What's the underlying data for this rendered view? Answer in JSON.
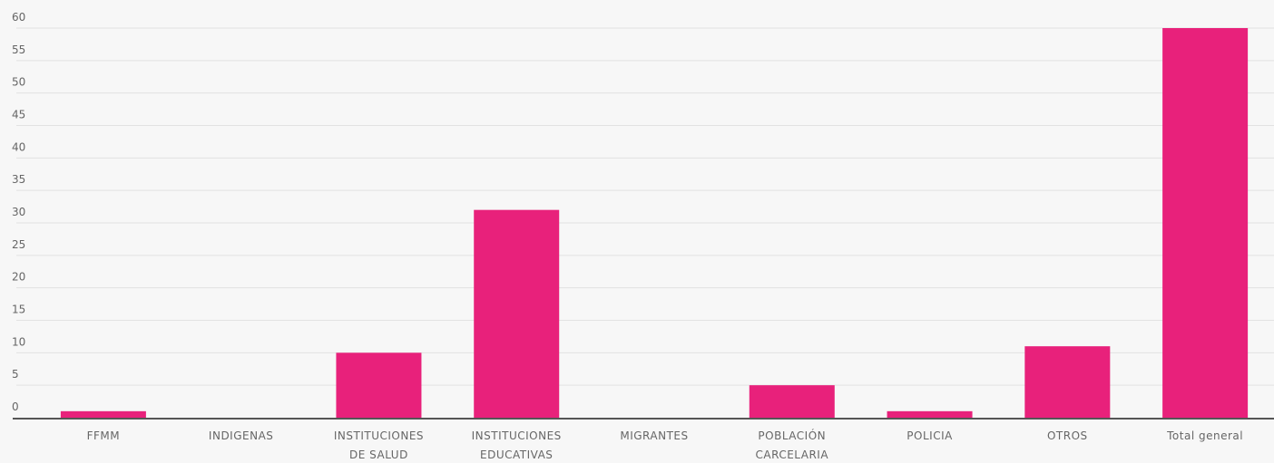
{
  "chart_data": {
    "type": "bar",
    "categories": [
      [
        "FFMM"
      ],
      [
        "INDIGENAS"
      ],
      [
        "INSTITUCIONES",
        "DE SALUD"
      ],
      [
        "INSTITUCIONES",
        "EDUCATIVAS"
      ],
      [
        "MIGRANTES"
      ],
      [
        "POBLACIÓN",
        "CARCELARIA"
      ],
      [
        "POLICIA"
      ],
      [
        "OTROS"
      ],
      [
        "Total general"
      ]
    ],
    "values": [
      1,
      0,
      10,
      32,
      0,
      5,
      1,
      11,
      60
    ],
    "ylim": [
      0,
      60
    ],
    "yticks": [
      0,
      5,
      10,
      15,
      20,
      25,
      30,
      35,
      40,
      45,
      50,
      55,
      60
    ],
    "grid": true,
    "colors": {
      "bar": "#e8217b",
      "grid": "#e2e2e2",
      "axis": "#555555"
    }
  }
}
